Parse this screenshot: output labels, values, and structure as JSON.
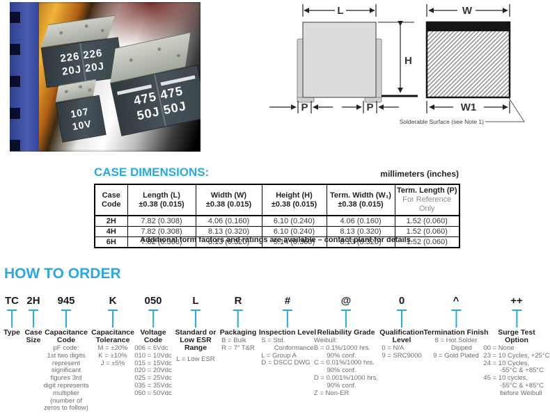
{
  "colors": {
    "accent": "#29a9e0"
  },
  "photo": {
    "capacitors": [
      {
        "line1": "226 226",
        "line2": "20J 20J"
      },
      {
        "line1": "107",
        "line2": "10V"
      },
      {
        "line1": "475 475",
        "line2": "50J 50J"
      }
    ]
  },
  "diagram": {
    "dim_l": "L",
    "dim_w": "W",
    "dim_h": "H",
    "dim_p_left": "P",
    "dim_p_right": "P",
    "dim_w1": "W1",
    "note": "Solderable Surface (see Note 1)"
  },
  "case_dimensions": {
    "title": "CASE DIMENSIONS:",
    "units": "millimeters (inches)",
    "table": {
      "headers": [
        {
          "line1": "Case",
          "line2": "Code"
        },
        {
          "line1": "Length (L)",
          "line2": "±0.38 (0.015)"
        },
        {
          "line1": "Width (W)",
          "line2": "±0.38 (0.015)"
        },
        {
          "line1": "Height (H)",
          "line2": "±0.38 (0.015)"
        },
        {
          "line1": "Term. Width (W₁)",
          "line2": "±0.38 (0.015)"
        },
        {
          "line1": "Term. Length (P)",
          "line2": "For Reference Only"
        }
      ],
      "rows": [
        [
          "2H",
          "7.82 (0.308)",
          "4.06 (0.160)",
          "6.10 (0.240)",
          "4.06 (0.160)",
          "1.52 (0.060)"
        ],
        [
          "4H",
          "7.82 (0.308)",
          "8.13 (0.320)",
          "6.10 (0.240)",
          "8.13 (0.320)",
          "1.52 (0.060)"
        ],
        [
          "6H",
          "7.82 (0.308)",
          "8.13 (0.320)",
          "9.14 (0.360)",
          "8.13 (0.320)",
          "1.52 (0.060)"
        ]
      ]
    },
    "footnote": "Additional form factors and ratings are available – contact plant for details."
  },
  "how_to_order": {
    "title": "HOW TO ORDER",
    "segments": [
      {
        "code": "TC",
        "label": "Type",
        "details": []
      },
      {
        "code": "2H",
        "label": "Case Size",
        "details": []
      },
      {
        "code": "945",
        "label": "Capacitance Code",
        "details": [
          "pF code:",
          "1st two digits",
          "represent",
          "significant",
          "figures 3rd",
          "digit represents",
          "multiplier",
          "(number of",
          "zeros to follow)"
        ]
      },
      {
        "code": "K",
        "label": "Capacitance Tolerance",
        "details": [
          "M = ±20%",
          "K = ±10%",
          "J = ±5%"
        ]
      },
      {
        "code": "050",
        "label": "Voltage Code",
        "details": [
          "006 = 6Vdc",
          "010 = 10Vdc",
          "015 = 15Vdc",
          "020 = 20Vdc",
          "025 = 25Vdc",
          "035 = 35Vdc",
          "050 = 50Vdc"
        ]
      },
      {
        "code": "L",
        "label": "Standard or Low ESR Range",
        "details": [
          "L = Low ESR"
        ]
      },
      {
        "code": "R",
        "label": "Packaging",
        "details": [
          "B = Bulk",
          "R = 7\" T&R"
        ]
      },
      {
        "code": "#",
        "label": "Inspection Level",
        "details": [
          "S = Std.",
          "       Conformance",
          "L = Group A",
          "D = DSCC DWG"
        ]
      },
      {
        "code": "@",
        "label": "Reliability Grade",
        "details": [
          "Weibull:",
          "B = 0.1%/1000 hrs.",
          "       90% conf.",
          "C = 0.01%/1000 hrs.",
          "       90% conf.",
          "D = 0.001%/1000 hrs.",
          "       90% conf.",
          "Z = Non-ER"
        ]
      },
      {
        "code": "0",
        "label": "Qualification Level",
        "details": [
          "0 = N/A",
          "9 = SRC9000"
        ]
      },
      {
        "code": "^",
        "label": "Termination Finish",
        "details": [
          "8 = Hot Solder",
          "      Dipped",
          "9 = Gold Plated"
        ]
      },
      {
        "code": "++",
        "label": "Surge Test Option",
        "details": [
          "00 = None",
          "23 = 10 Cycles, +25°C",
          "24 = 10 Cycles,",
          "         -55°C & +85°C",
          "45 = 10 cycles,",
          "         -55°C & +85°C",
          "         before Weibull"
        ]
      }
    ]
  }
}
